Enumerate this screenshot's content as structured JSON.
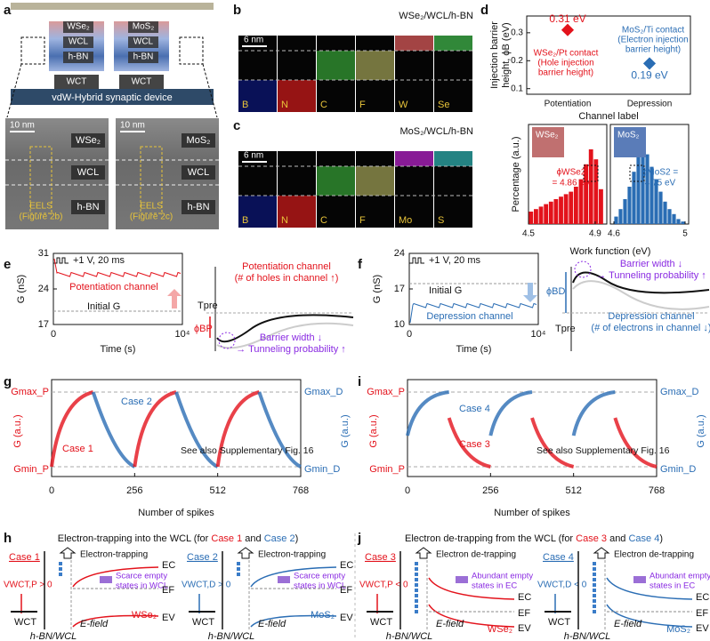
{
  "panel_labels": [
    "a",
    "b",
    "c",
    "d",
    "e",
    "f",
    "g",
    "i",
    "h",
    "j"
  ],
  "a": {
    "device": "vdW-Hybrid synaptic device",
    "stacks": [
      {
        "layers": [
          "WSe₂",
          "WCL",
          "h-BN",
          "WCT"
        ]
      },
      {
        "layers": [
          "MoS₂",
          "WCL",
          "h-BN",
          "WCT"
        ]
      }
    ],
    "tem": [
      {
        "scale": "10 nm",
        "labels": [
          "WSe₂",
          "WCL",
          "h-BN"
        ],
        "eels": "EELS",
        "fig": "(Figure 2b)"
      },
      {
        "scale": "10 nm",
        "labels": [
          "MoS₂",
          "WCL",
          "h-BN"
        ],
        "eels": "EELS",
        "fig": "(Figure 2c)"
      }
    ]
  },
  "b": {
    "title": "WSe₂/WCL/h-BN",
    "scale": "6 nm",
    "elements": [
      "B",
      "N",
      "C",
      "F",
      "W",
      "Se"
    ]
  },
  "c": {
    "title": "MoS₂/WCL/h-BN",
    "scale": "6 nm",
    "elements": [
      "B",
      "N",
      "C",
      "F",
      "Mo",
      "S"
    ]
  },
  "d": {
    "chart_data": [
      {
        "type": "scatter",
        "ylabel": [
          "Injection barrier",
          "height, ϕB (eV)"
        ],
        "xlabel": "Channel label",
        "categories": [
          "Potentiation",
          "Depression"
        ],
        "values": [
          0.31,
          0.19
        ],
        "value_labels": [
          "0.31 eV",
          "0.19 eV"
        ],
        "colors": [
          "#e3121b",
          "#2a6db4"
        ],
        "ylim": [
          0.08,
          0.36
        ],
        "yticks": [
          0.1,
          0.2,
          0.3
        ],
        "annotations": [
          [
            "WSe₂/Pt contact",
            "(Hole injection",
            "barrier height)"
          ],
          [
            "MoS₂/Ti contact",
            "(Electron injection",
            "barrier height)"
          ]
        ]
      },
      {
        "type": "histogram",
        "ylabel": "Percentage (a.u.)",
        "xlabel": "Work function (eV)",
        "panels": [
          {
            "inset": "WSe₂",
            "annotation": [
              "ϕWSe2",
              "= 4.86 eV"
            ],
            "color": "#e3121b",
            "xlim": [
              4.5,
              4.97
            ],
            "xticks": [
              4.5,
              4.9
            ],
            "bins": [
              4.5,
              4.53,
              4.56,
              4.59,
              4.62,
              4.65,
              4.68,
              4.71,
              4.74,
              4.77,
              4.8,
              4.83,
              4.86,
              4.89,
              4.92,
              4.95
            ],
            "counts": [
              5,
              6,
              7,
              8,
              9,
              10,
              11,
              12,
              13,
              15,
              18,
              24,
              30,
              26,
              14
            ]
          },
          {
            "inset": "MoS₂",
            "annotation": [
              "ϕMoS2 =",
              "4.75 eV"
            ],
            "color": "#2a6db4",
            "xlim": [
              4.58,
              5.02
            ],
            "xticks": [
              4.6,
              5.0
            ],
            "bins": [
              4.6,
              4.625,
              4.65,
              4.675,
              4.7,
              4.725,
              4.75,
              4.775,
              4.8,
              4.825,
              4.85,
              4.875,
              4.9,
              4.925,
              4.95,
              4.975,
              5.0
            ],
            "counts": [
              3,
              6,
              10,
              15,
              21,
              27,
              31,
              28,
              23,
              18,
              13,
              9,
              6,
              4,
              2,
              1
            ]
          }
        ],
        "ylim": [
          0,
          40
        ]
      }
    ]
  },
  "e": {
    "pulse": "+1 V, 20 ms",
    "ylabel": "G (nS)",
    "xlabel": "Time (s)",
    "yticks": [
      17,
      24,
      31
    ],
    "ylim": [
      17,
      31
    ],
    "xticks": [
      0,
      {
        "value": 10000,
        "label": "10⁴"
      }
    ],
    "xlim": [
      0,
      10000
    ],
    "trace": "Potentiation channel",
    "initial": "Initial G",
    "schematic": {
      "tpre": "Tpre",
      "phi": "ϕBP",
      "channel": [
        "Potentiation channel",
        "(# of holes in channel ↑)"
      ],
      "barrier": [
        "Barrier width ↓",
        "→ Tunneling probability ↑"
      ]
    }
  },
  "f": {
    "pulse": "+1 V, 20 ms",
    "ylabel": "G (nS)",
    "xlabel": "Time (s)",
    "yticks": [
      10,
      17,
      24
    ],
    "ylim": [
      10,
      24
    ],
    "xticks": [
      0,
      {
        "value": 10000,
        "label": "10⁴"
      }
    ],
    "xlim": [
      0,
      10000
    ],
    "trace": "Depression channel",
    "initial": "Initial G",
    "schematic": {
      "tpre": "Tpre",
      "phi": "ϕBD",
      "channel": [
        "Depression channel",
        "(# of electrons in channel ↓)"
      ],
      "barrier": [
        "Barrier width ↓",
        "→ Tunneling probability ↑"
      ]
    }
  },
  "g": {
    "ylabel": "G (a.u.)",
    "xlabel": "Number of spikes",
    "gmax_p": "Gmax_P",
    "gmin_p": "Gmin_P",
    "gmax_d": "Gmax_D",
    "gmin_d": "Gmin_D",
    "xticks": [
      0,
      256,
      512,
      768
    ],
    "xlim": [
      0,
      768
    ],
    "cases": [
      "Case 1",
      "Case 2"
    ],
    "note": "See also Supplementary Fig. 16"
  },
  "i": {
    "ylabel": "G (a.u.)",
    "xlabel": "Number of spikes",
    "gmax_p": "Gmax_P",
    "gmin_p": "Gmin_P",
    "gmax_d": "Gmax_D",
    "gmin_d": "Gmin_D",
    "xticks": [
      0,
      256,
      512,
      768
    ],
    "xlim": [
      0,
      768
    ],
    "cases": [
      "Case 3",
      "Case 4"
    ],
    "note": "See also Supplementary Fig. 16"
  },
  "h": {
    "title": [
      {
        "text": "Electron-trapping into the WCL (for ",
        "color": "#111"
      },
      {
        "text": "Case 1",
        "color": "#e3121b"
      },
      {
        "text": " and ",
        "color": "#111"
      },
      {
        "text": "Case 2",
        "color": "#2a6db4"
      },
      {
        "text": ")",
        "color": "#111"
      }
    ],
    "cases": [
      {
        "label": "Case 1",
        "color": "#e3121b",
        "bias": "VWCT,P > 0",
        "wct": "WCT",
        "interface": "h-BN/WCL",
        "process": "Electron-trapping",
        "note": [
          "Scarce empty",
          "states in WCL"
        ],
        "field": "E-field",
        "ec": "EC",
        "ef": "EF",
        "ev": "EV",
        "material": "WSe₂"
      },
      {
        "label": "Case 2",
        "color": "#2a6db4",
        "bias": "VWCT,D > 0",
        "wct": "WCT",
        "interface": "h-BN/WCL",
        "process": "Electron-trapping",
        "note": [
          "Scarce empty",
          "states in WCL"
        ],
        "field": "E-field",
        "ec": "EC",
        "ef": "EF",
        "ev": "EV",
        "material": "MoS₂"
      }
    ]
  },
  "j": {
    "title": [
      {
        "text": "Electron de-trapping from the WCL (for ",
        "color": "#111"
      },
      {
        "text": "Case 3",
        "color": "#e3121b"
      },
      {
        "text": " and ",
        "color": "#111"
      },
      {
        "text": "Case 4",
        "color": "#2a6db4"
      },
      {
        "text": ")",
        "color": "#111"
      }
    ],
    "cases": [
      {
        "label": "Case 3",
        "color": "#e3121b",
        "bias": "VWCT,P < 0",
        "wct": "WCT",
        "interface": "h-BN/WCL",
        "process": "Electron de-trapping",
        "note": [
          "Abundant empty",
          "states in EC"
        ],
        "field": "E-field",
        "ec": "EC",
        "ef": "EF",
        "ev": "EV",
        "material": "WSe₂"
      },
      {
        "label": "Case 4",
        "color": "#2a6db4",
        "bias": "VWCT,D < 0",
        "wct": "WCT",
        "interface": "h-BN/WCL",
        "process": "Electron de-trapping",
        "note": [
          "Abundant empty",
          "states in EC"
        ],
        "field": "E-field",
        "ec": "EC",
        "ef": "EF",
        "ev": "EV",
        "material": "MoS₂"
      }
    ]
  }
}
